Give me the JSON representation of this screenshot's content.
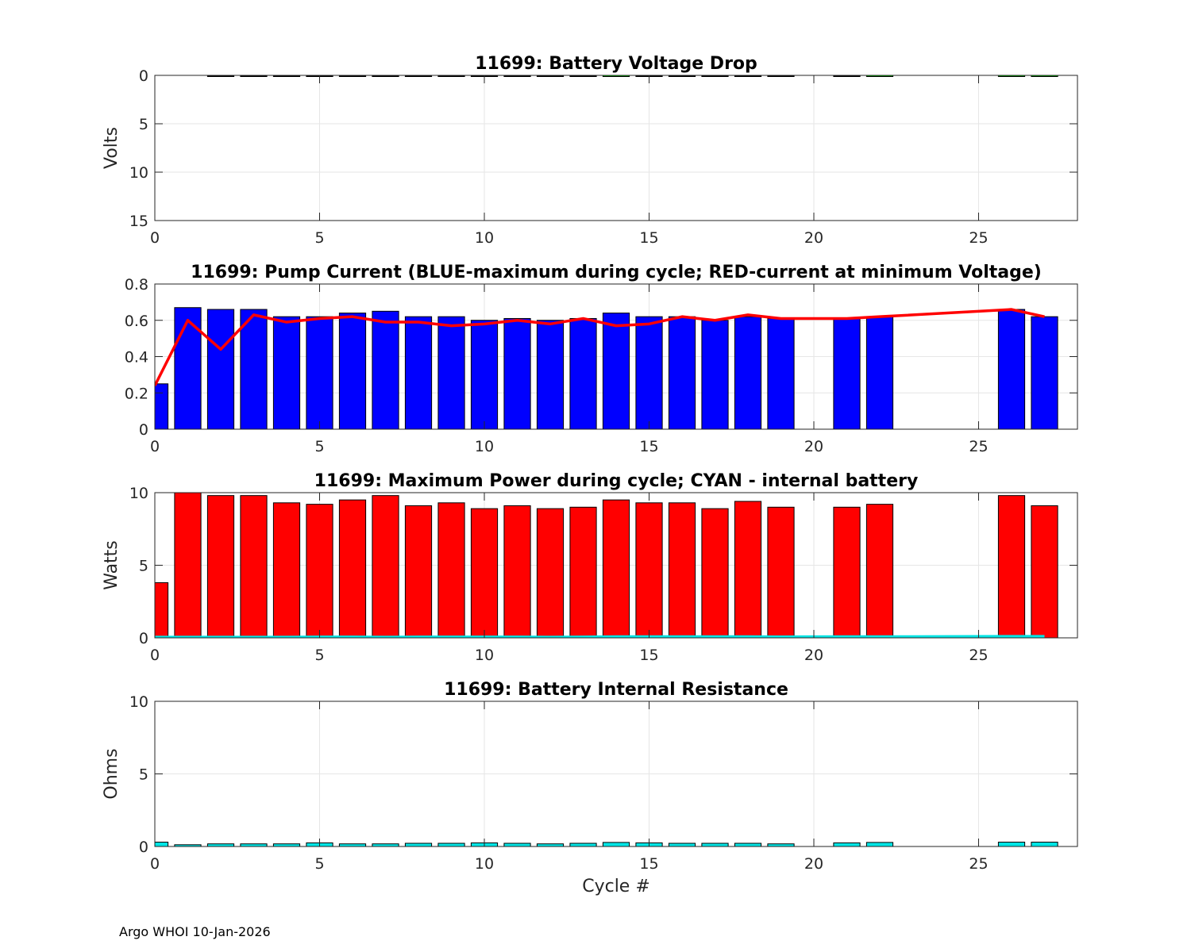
{
  "figure": {
    "footer": "Argo WHOI 10-Jan-2026",
    "xlabel": "Cycle #"
  },
  "colors": {
    "blue": "#0000ff",
    "red": "#ff0000",
    "cyan": "#00e5e5",
    "green": "#00cc00",
    "grid": "#e6e6e6",
    "axis": "#262626"
  },
  "chart_data": [
    {
      "id": "voltage",
      "type": "bar",
      "title": "11699: Battery Voltage Drop",
      "xlabel": "",
      "ylabel": "Volts",
      "xlim": [
        0,
        28
      ],
      "ylim": [
        0,
        15
      ],
      "y_reversed": true,
      "xticks": [
        0,
        5,
        10,
        15,
        20,
        25
      ],
      "yticks": [
        0,
        5,
        10,
        15
      ],
      "grid": true,
      "series": [
        {
          "name": "voltage-drop",
          "color": "#000000",
          "x": [
            2,
            3,
            4,
            5,
            6,
            7,
            8,
            9,
            10,
            11,
            12,
            13,
            15,
            16,
            17,
            18,
            19,
            21
          ],
          "values": [
            0.04,
            0.04,
            0.04,
            0.04,
            0.04,
            0.04,
            0.04,
            0.04,
            0.04,
            0.04,
            0.04,
            0.04,
            0.04,
            0.04,
            0.04,
            0.04,
            0.04,
            0.04
          ]
        },
        {
          "name": "voltage-drop-green",
          "color": "#00cc00",
          "x": [
            14,
            22,
            26,
            27
          ],
          "values": [
            0.1,
            0.1,
            0.1,
            0.1
          ]
        }
      ]
    },
    {
      "id": "current",
      "type": "bar",
      "title": "11699: Pump Current (BLUE-maximum during cycle; RED-current at minimum Voltage)",
      "xlabel": "",
      "ylabel": "",
      "xlim": [
        0,
        28
      ],
      "ylim": [
        0,
        0.8
      ],
      "xticks": [
        0,
        5,
        10,
        15,
        20,
        25
      ],
      "yticks": [
        0,
        0.2,
        0.4,
        0.6,
        0.8
      ],
      "ytick_labels": [
        "0",
        "0.2",
        "0.4",
        "0.6",
        "0.8"
      ],
      "grid": true,
      "series": [
        {
          "name": "Pump Current max",
          "color": "#0000ff",
          "x": [
            0,
            1,
            2,
            3,
            4,
            5,
            6,
            7,
            8,
            9,
            10,
            11,
            12,
            13,
            14,
            15,
            16,
            17,
            18,
            19,
            21,
            22,
            26,
            27
          ],
          "values": [
            0.25,
            0.67,
            0.66,
            0.66,
            0.62,
            0.62,
            0.64,
            0.65,
            0.62,
            0.62,
            0.6,
            0.61,
            0.6,
            0.61,
            0.64,
            0.62,
            0.62,
            0.6,
            0.62,
            0.61,
            0.61,
            0.62,
            0.66,
            0.62
          ]
        }
      ],
      "line": {
        "name": "current at minimum Voltage",
        "color": "#ff0000",
        "x": [
          0,
          1,
          2,
          3,
          4,
          5,
          6,
          7,
          8,
          9,
          10,
          11,
          12,
          13,
          14,
          15,
          16,
          17,
          18,
          19,
          21,
          22,
          26,
          27
        ],
        "values": [
          0.24,
          0.6,
          0.44,
          0.63,
          0.59,
          0.61,
          0.62,
          0.59,
          0.59,
          0.57,
          0.58,
          0.6,
          0.58,
          0.61,
          0.57,
          0.58,
          0.62,
          0.6,
          0.63,
          0.61,
          0.61,
          0.62,
          0.66,
          0.62
        ]
      }
    },
    {
      "id": "power",
      "type": "bar",
      "title": "11699: Maximum Power during cycle; CYAN - internal battery",
      "xlabel": "",
      "ylabel": "Watts",
      "xlim": [
        0,
        28
      ],
      "ylim": [
        0,
        10
      ],
      "xticks": [
        0,
        5,
        10,
        15,
        20,
        25
      ],
      "yticks": [
        0,
        5,
        10
      ],
      "grid": true,
      "series": [
        {
          "name": "Maximum Power",
          "color": "#ff0000",
          "x": [
            0,
            1,
            2,
            3,
            4,
            5,
            6,
            7,
            8,
            9,
            10,
            11,
            12,
            13,
            14,
            15,
            16,
            17,
            18,
            19,
            21,
            22,
            26,
            27
          ],
          "values": [
            3.8,
            10.0,
            9.8,
            9.8,
            9.3,
            9.2,
            9.5,
            9.8,
            9.1,
            9.3,
            8.9,
            9.1,
            8.9,
            9.0,
            9.5,
            9.3,
            9.3,
            8.9,
            9.4,
            9.0,
            9.0,
            9.2,
            9.8,
            9.1
          ]
        }
      ],
      "line": {
        "name": "internal battery",
        "color": "#00e5e5",
        "x": [
          0,
          1,
          2,
          3,
          4,
          5,
          6,
          7,
          8,
          9,
          10,
          11,
          12,
          13,
          14,
          15,
          16,
          17,
          18,
          19,
          21,
          22,
          26,
          27
        ],
        "values": [
          0.05,
          0.05,
          0.05,
          0.05,
          0.05,
          0.06,
          0.06,
          0.05,
          0.06,
          0.06,
          0.06,
          0.06,
          0.05,
          0.06,
          0.08,
          0.08,
          0.08,
          0.08,
          0.08,
          0.07,
          0.08,
          0.08,
          0.1,
          0.1
        ]
      }
    },
    {
      "id": "resistance",
      "type": "bar",
      "title": "11699: Battery Internal Resistance",
      "xlabel": "Cycle #",
      "ylabel": "Ohms",
      "xlim": [
        0,
        28
      ],
      "ylim": [
        0,
        10
      ],
      "xticks": [
        0,
        5,
        10,
        15,
        20,
        25
      ],
      "yticks": [
        0,
        5,
        10
      ],
      "grid": true,
      "series": [
        {
          "name": "Internal Resistance",
          "color": "#00e5e5",
          "x": [
            0,
            1,
            2,
            3,
            4,
            5,
            6,
            7,
            8,
            9,
            10,
            11,
            12,
            13,
            14,
            15,
            16,
            17,
            18,
            19,
            21,
            22,
            26,
            27
          ],
          "values": [
            0.3,
            0.12,
            0.18,
            0.18,
            0.18,
            0.25,
            0.18,
            0.18,
            0.22,
            0.22,
            0.25,
            0.22,
            0.18,
            0.22,
            0.28,
            0.25,
            0.22,
            0.22,
            0.22,
            0.18,
            0.25,
            0.28,
            0.3,
            0.3
          ]
        }
      ]
    }
  ]
}
